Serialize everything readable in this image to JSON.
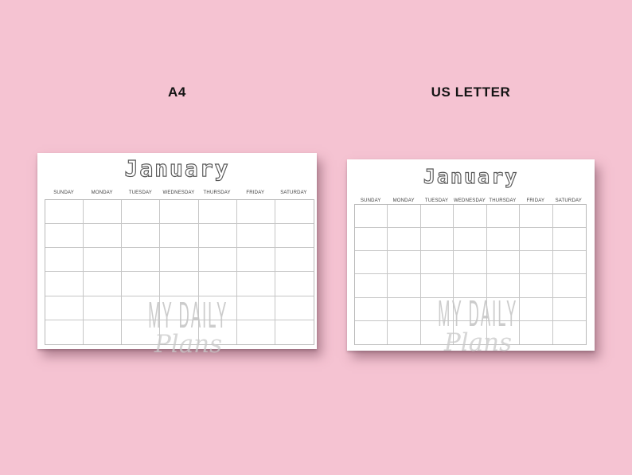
{
  "background": {
    "color": "#f5c3d2"
  },
  "colors": {
    "page": "#ffffff",
    "grid_line": "#c6c6c6",
    "grid_border": "#b9b9b9",
    "title_outline": "#565656",
    "day_header_text": "#3e3e3e",
    "format_label_text": "#141414",
    "watermark_text": "#c4c4c4"
  },
  "calendars": [
    {
      "format": "A4",
      "title": "January",
      "day_headers": [
        "SUNDAY",
        "MONDAY",
        "TUESDAY",
        "WEDNESDAY",
        "THURSDAY",
        "FRIDAY",
        "SATURDAY"
      ],
      "grid": {
        "rows": 6,
        "columns": 7
      },
      "watermark": {
        "line1": "MY DAILY",
        "line2": "Plans"
      }
    },
    {
      "format": "US LETTER",
      "title": "January",
      "day_headers": [
        "SUNDAY",
        "MONDAY",
        "TUESDAY",
        "WEDNESDAY",
        "THURSDAY",
        "FRIDAY",
        "SATURDAY"
      ],
      "grid": {
        "rows": 6,
        "columns": 7
      },
      "watermark": {
        "line1": "MY DAILY",
        "line2": "Plans"
      }
    }
  ]
}
